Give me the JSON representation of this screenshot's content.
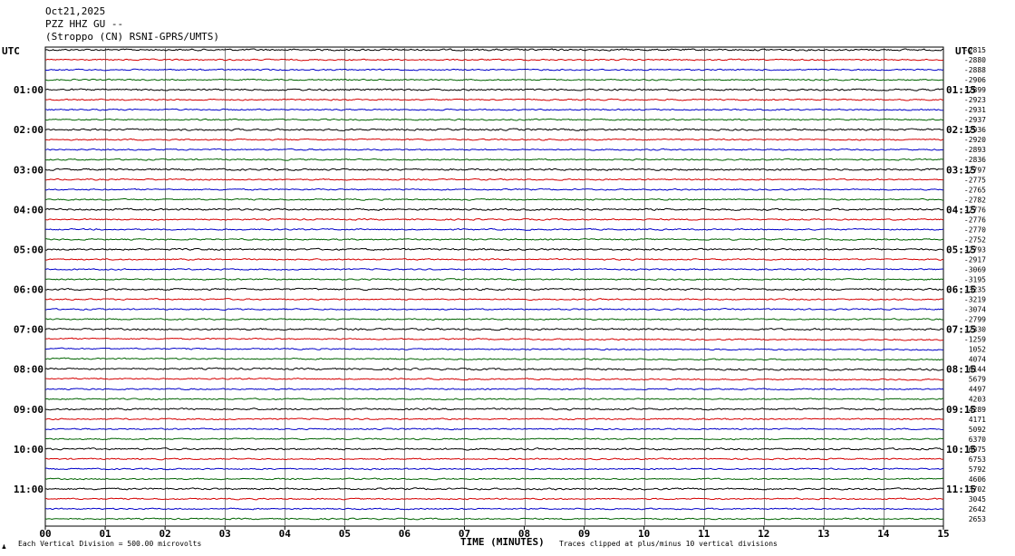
{
  "header": {
    "date": "Oct21,2025",
    "station": "PZZ HHZ GU --",
    "location": "(Stroppo (CN) RSNI-GPRS/UMTS)"
  },
  "colors": {
    "trace_cycle": [
      "#000000",
      "#d40000",
      "#0000c8",
      "#006400"
    ],
    "grid": "#808080"
  },
  "footer": {
    "scale": "Each Vertical Division =  500.00 microvolts",
    "clip": "Traces clipped at plus/minus 10 vertical divisions",
    "corner": "♟"
  },
  "chart_data": {
    "type": "line",
    "title": "",
    "xlabel": "TIME (MINUTES)",
    "xlim": [
      0,
      15
    ],
    "x_ticks": [
      "00",
      "01",
      "02",
      "03",
      "04",
      "05",
      "06",
      "07",
      "08",
      "09",
      "10",
      "11",
      "12",
      "13",
      "14",
      "15"
    ],
    "left_axis_label": "UTC",
    "right_axis_label": "UTC",
    "left_hour_labels": [
      {
        "row": 4,
        "text": "01:00"
      },
      {
        "row": 8,
        "text": "02:00"
      },
      {
        "row": 12,
        "text": "03:00"
      },
      {
        "row": 16,
        "text": "04:00"
      },
      {
        "row": 20,
        "text": "05:00"
      },
      {
        "row": 24,
        "text": "06:00"
      },
      {
        "row": 28,
        "text": "07:00"
      },
      {
        "row": 32,
        "text": "08:00"
      },
      {
        "row": 36,
        "text": "09:00"
      },
      {
        "row": 40,
        "text": "10:00"
      },
      {
        "row": 44,
        "text": "11:00"
      }
    ],
    "right_hour_labels": [
      {
        "row": 4,
        "text": "01:15"
      },
      {
        "row": 8,
        "text": "02:15"
      },
      {
        "row": 12,
        "text": "03:15"
      },
      {
        "row": 16,
        "text": "04:15"
      },
      {
        "row": 20,
        "text": "05:15"
      },
      {
        "row": 24,
        "text": "06:15"
      },
      {
        "row": 28,
        "text": "07:15"
      },
      {
        "row": 32,
        "text": "08:15"
      },
      {
        "row": 36,
        "text": "09:15"
      },
      {
        "row": 40,
        "text": "10:15"
      },
      {
        "row": 44,
        "text": "11:15"
      }
    ],
    "trace_offsets": [
      "-2815",
      "-2880",
      "-2888",
      "-2906",
      "-2899",
      "-2923",
      "-2931",
      "-2937",
      "-2936",
      "-2920",
      "-2893",
      "-2836",
      "-2797",
      "-2775",
      "-2765",
      "-2782",
      "-2776",
      "-2776",
      "-2770",
      "-2752",
      "-2793",
      "-2917",
      "-3069",
      "-3195",
      "-3235",
      "-3219",
      "-3074",
      "-2799",
      "-2330",
      "-1259",
      "1052",
      "4074",
      "6144",
      "5679",
      "4497",
      "4203",
      "4289",
      "4171",
      "5092",
      "6370",
      "6975",
      "6753",
      "5792",
      "4606",
      "3702",
      "3045",
      "2642",
      "2653"
    ],
    "traces_per_hour": 4,
    "minutes_per_trace": 15,
    "grid": true
  }
}
